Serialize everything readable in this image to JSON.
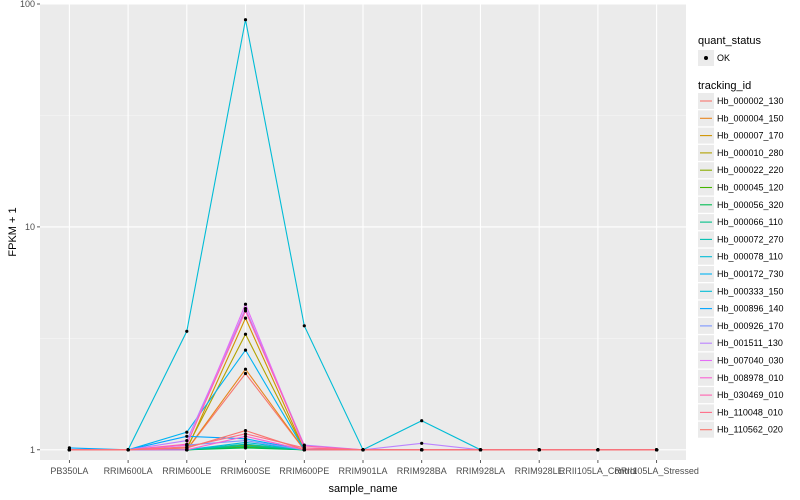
{
  "chart_data": {
    "type": "line",
    "xlabel": "sample_name",
    "ylabel": "FPKM + 1",
    "yscale": "log10",
    "ylim": [
      0.9,
      100
    ],
    "yticks": [
      {
        "value": 1,
        "label": "1"
      },
      {
        "value": 10,
        "label": "10"
      },
      {
        "value": 100,
        "label": "100"
      }
    ],
    "categories": [
      "PB350LA",
      "RRIM600LA",
      "RRIM600LE",
      "RRIM600SE",
      "RRIM600PE",
      "RRIM901LA",
      "RRIM928BA",
      "RRIM928LA",
      "RRIM928LE",
      "RRII105LA_Control",
      "RRII105LA_Stressed"
    ],
    "legend_quant": {
      "title": "quant_status",
      "entries": [
        "OK"
      ]
    },
    "legend_tracking_title": "tracking_id",
    "series": [
      {
        "name": "Hb_000002_130",
        "color": "#F8766D",
        "values": [
          1,
          1,
          1,
          2.2,
          1,
          1,
          1,
          1,
          1,
          1,
          1
        ]
      },
      {
        "name": "Hb_000004_150",
        "color": "#E7851E",
        "values": [
          1,
          1,
          1,
          2.3,
          1,
          1,
          1,
          1,
          1,
          1,
          1
        ]
      },
      {
        "name": "Hb_000007_170",
        "color": "#D09400",
        "values": [
          1,
          1,
          1,
          3.9,
          1,
          1,
          1,
          1,
          1,
          1,
          1
        ]
      },
      {
        "name": "Hb_000010_280",
        "color": "#B2A100",
        "values": [
          1,
          1,
          1.02,
          3.3,
          1,
          1,
          1,
          1,
          1,
          1,
          1
        ]
      },
      {
        "name": "Hb_000022_220",
        "color": "#89AC00",
        "values": [
          1,
          1,
          1,
          1.05,
          1,
          1,
          1,
          1,
          1,
          1,
          1
        ]
      },
      {
        "name": "Hb_000045_120",
        "color": "#45B500",
        "values": [
          1,
          1,
          1,
          1.03,
          1,
          1,
          1,
          1,
          1,
          1,
          1
        ]
      },
      {
        "name": "Hb_000056_320",
        "color": "#00BC51",
        "values": [
          1,
          1,
          1,
          1.02,
          1,
          1,
          1,
          1,
          1,
          1,
          1
        ]
      },
      {
        "name": "Hb_000066_110",
        "color": "#00C087",
        "values": [
          1,
          1,
          1,
          1.04,
          1,
          1,
          1,
          1,
          1,
          1,
          1
        ]
      },
      {
        "name": "Hb_000072_270",
        "color": "#00C0B2",
        "values": [
          1,
          1,
          1,
          1.06,
          1,
          1,
          1,
          1,
          1,
          1,
          1
        ]
      },
      {
        "name": "Hb_000078_110",
        "color": "#00BCD6",
        "values": [
          1,
          1,
          1,
          1.08,
          1,
          1,
          1,
          1,
          1,
          1,
          1
        ]
      },
      {
        "name": "Hb_000172_730",
        "color": "#00B3F2",
        "values": [
          1,
          1,
          1.2,
          2.8,
          1,
          1,
          1,
          1,
          1,
          1,
          1
        ]
      },
      {
        "name": "Hb_000333_150",
        "color": "#00BCD6",
        "values": [
          1,
          1,
          3.4,
          85,
          3.6,
          1,
          1.35,
          1,
          1,
          1,
          1
        ]
      },
      {
        "name": "Hb_000896_140",
        "color": "#00A5FF",
        "values": [
          1.02,
          1,
          1.15,
          1.12,
          1,
          1,
          1,
          1,
          1,
          1,
          1
        ]
      },
      {
        "name": "Hb_000926_170",
        "color": "#7C96FF",
        "values": [
          1,
          1,
          1.05,
          1.1,
          1,
          1,
          1,
          1,
          1,
          1,
          1
        ]
      },
      {
        "name": "Hb_001511_130",
        "color": "#BB83FF",
        "values": [
          1,
          1,
          1.1,
          4.3,
          1.05,
          1,
          1.07,
          1,
          1,
          1,
          1
        ]
      },
      {
        "name": "Hb_007040_030",
        "color": "#E46DF6",
        "values": [
          1,
          1,
          1.05,
          4.5,
          1.02,
          1,
          1,
          1,
          1,
          1,
          1
        ]
      },
      {
        "name": "Hb_008978_010",
        "color": "#FA62D5",
        "values": [
          1,
          1,
          1,
          1.15,
          1,
          1,
          1,
          1,
          1,
          1,
          1
        ]
      },
      {
        "name": "Hb_030469_010",
        "color": "#FF61AE",
        "values": [
          1,
          1,
          1.06,
          4.2,
          1.04,
          1,
          1,
          1,
          1,
          1,
          1
        ]
      },
      {
        "name": "Hb_110048_010",
        "color": "#FF6C87",
        "values": [
          1,
          1,
          1.03,
          1.18,
          1.02,
          1,
          1,
          1,
          1,
          1,
          1
        ]
      },
      {
        "name": "Hb_110562_020",
        "color": "#F8766D",
        "values": [
          1,
          1,
          1.02,
          1.22,
          1,
          1,
          1,
          1,
          1,
          1,
          1
        ]
      }
    ]
  }
}
